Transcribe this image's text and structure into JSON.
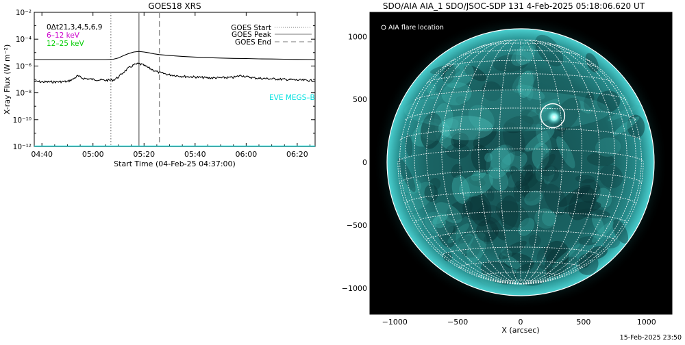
{
  "left_panel": {
    "title": "GOES18 XRS",
    "ylabel": "X-ray Flux (W m⁻²)",
    "xlabel": "Start Time (04-Feb-25 04:37:00)",
    "legend_top_left": [
      {
        "text": "0Δt21,3,4,5,6,9",
        "color": "#000000"
      },
      {
        "text": "6–12 keV",
        "color": "#cc00cc"
      },
      {
        "text": "12–25 keV",
        "color": "#00cc00"
      }
    ],
    "legend_right": [
      {
        "text": "GOES Start",
        "style": "dotted"
      },
      {
        "text": "GOES Peak",
        "style": "solid"
      },
      {
        "text": "GOES End",
        "style": "dashed"
      }
    ],
    "eve_label": "EVE MEGS–B",
    "eve_color": "#00e0e0"
  },
  "right_panel": {
    "title": "SDO/AIA AIA_1 SDO/JSOC-SDP 131  4-Feb-2025 05:18:06.620 UT",
    "xlabel": "X (arcsec)",
    "legend": "AIA flare location",
    "footer": "15-Feb-2025 23:50",
    "disk_color": "#1a6b6b"
  },
  "chart_data": [
    {
      "type": "line",
      "title": "GOES18 XRS",
      "xlabel": "Start Time (04-Feb-25 04:37:00)",
      "ylabel": "X-ray Flux (W m⁻²)",
      "y_scale": "log",
      "ylim": [
        1e-12,
        0.01
      ],
      "xlim": [
        "04:37",
        "06:27"
      ],
      "x_ticks": [
        "04:40",
        "05:00",
        "05:20",
        "05:40",
        "06:00",
        "06:20"
      ],
      "y_ticks": [
        "10⁻¹²",
        "10⁻¹⁰",
        "10⁻⁸",
        "10⁻⁶",
        "10⁻⁴",
        "10⁻²"
      ],
      "vertical_lines": [
        {
          "name": "GOES Start",
          "x": "05:07",
          "style": "dotted"
        },
        {
          "name": "GOES Peak",
          "x": "05:18",
          "style": "solid"
        },
        {
          "name": "GOES End",
          "x": "05:26",
          "style": "dashed"
        }
      ],
      "series": [
        {
          "color": "#000000",
          "x": [
            "04:37",
            "04:45",
            "04:50",
            "04:55",
            "05:00",
            "05:05",
            "05:08",
            "05:10",
            "05:12",
            "05:14",
            "05:16",
            "05:18",
            "05:20",
            "05:22",
            "05:24",
            "05:26",
            "05:30",
            "05:35",
            "05:40",
            "05:45",
            "05:50",
            "05:55",
            "06:00",
            "06:05",
            "06:10",
            "06:15",
            "06:20",
            "06:27"
          ],
          "y": [
            3e-06,
            3e-06,
            3e-06,
            3e-06,
            3e-06,
            3e-06,
            3.2e-06,
            4e-06,
            6e-06,
            8.5e-06,
            1.1e-05,
            1.2e-05,
            1.1e-05,
            9.5e-06,
            8e-06,
            7e-06,
            6e-06,
            5.2e-06,
            4.6e-06,
            4.2e-06,
            3.9e-06,
            3.7e-06,
            3.6e-06,
            3.4e-06,
            3.3e-06,
            3.2e-06,
            3.1e-06,
            3e-06
          ]
        },
        {
          "color": "#000000",
          "x": [
            "04:37",
            "04:40",
            "04:45",
            "04:50",
            "04:52",
            "04:54",
            "04:56",
            "05:00",
            "05:05",
            "05:08",
            "05:10",
            "05:12",
            "05:14",
            "05:16",
            "05:18",
            "05:20",
            "05:22",
            "05:24",
            "05:26",
            "05:30",
            "05:35",
            "05:40",
            "05:45",
            "05:50",
            "05:55",
            "05:58",
            "06:00",
            "06:03",
            "06:05",
            "06:10",
            "06:15",
            "06:20",
            "06:27"
          ],
          "y": [
            7e-08,
            6.5e-08,
            6.5e-08,
            7e-08,
            1e-07,
            1.8e-07,
            1.2e-07,
            1e-07,
            8.5e-08,
            9e-08,
            1.5e-07,
            3.5e-07,
            7e-07,
            1.2e-06,
            1.5e-06,
            1.1e-06,
            7e-07,
            4.5e-07,
            3.2e-07,
            2.2e-07,
            1.7e-07,
            1.5e-07,
            1.3e-07,
            1.3e-07,
            1.4e-07,
            2e-07,
            1.6e-07,
            1.3e-07,
            1.2e-07,
            1.1e-07,
            1e-07,
            9e-08,
            8e-08
          ]
        },
        {
          "name": "EVE MEGS–B",
          "color": "#00e0e0",
          "x": [
            "04:37",
            "06:27"
          ],
          "y": [
            1e-12,
            1e-12
          ]
        }
      ]
    },
    {
      "type": "image",
      "title": "SDO/AIA AIA_1 SDO/JSOC-SDP 131  4-Feb-2025 05:18:06.620 UT",
      "xlabel": "X (arcsec)",
      "ylabel": "",
      "xlim": [
        -1200,
        1200
      ],
      "ylim": [
        -1200,
        1200
      ],
      "x_ticks": [
        -1000,
        -500,
        0,
        500,
        1000
      ],
      "y_ticks": [
        -1000,
        -500,
        0,
        500,
        1000
      ],
      "solar_radius_arcsec": 975,
      "flare_location": {
        "x": 255,
        "y": 370,
        "radius": 95
      },
      "legend": "AIA flare location"
    }
  ]
}
